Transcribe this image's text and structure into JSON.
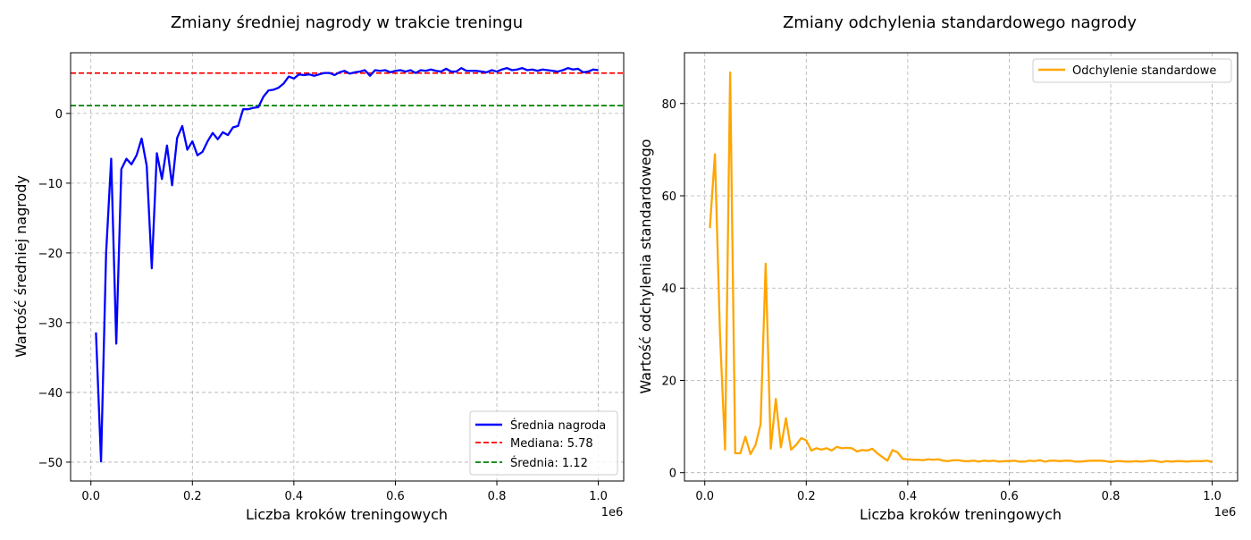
{
  "chart_data": [
    {
      "type": "line",
      "title": "Zmiany średniej nagrody w trakcie treningu",
      "xlabel": "Liczba kroków treningowych",
      "ylabel": "Wartość średniej nagrody",
      "x_offset_label": "1e6",
      "xlim": [
        -0.04,
        1.05
      ],
      "ylim": [
        -52.7,
        8.7
      ],
      "x_ticks": [
        0.0,
        0.2,
        0.4,
        0.6,
        0.8,
        1.0
      ],
      "x_tick_labels": [
        "0.0",
        "0.2",
        "0.4",
        "0.6",
        "0.8",
        "1.0"
      ],
      "y_ticks": [
        -50,
        -40,
        -30,
        -20,
        -10,
        0
      ],
      "y_tick_labels": [
        "−50",
        "−40",
        "−30",
        "−20",
        "−10",
        "0"
      ],
      "grid": true,
      "legend_position": "bottom-right",
      "legend": [
        "Średnia nagroda",
        "Mediana: 5.78",
        "Średnia: 1.12"
      ],
      "series": [
        {
          "name": "Średnia nagroda",
          "color": "#0000ff",
          "style": "solid",
          "x": [
            0.01,
            0.02,
            0.03,
            0.04,
            0.05,
            0.06,
            0.07,
            0.08,
            0.09,
            0.1,
            0.11,
            0.12,
            0.13,
            0.14,
            0.15,
            0.16,
            0.17,
            0.18,
            0.19,
            0.2,
            0.21,
            0.22,
            0.23,
            0.24,
            0.25,
            0.26,
            0.27,
            0.28,
            0.29,
            0.3,
            0.31,
            0.32,
            0.33,
            0.34,
            0.35,
            0.36,
            0.37,
            0.38,
            0.39,
            0.4,
            0.41,
            0.42,
            0.43,
            0.44,
            0.45,
            0.46,
            0.47,
            0.48,
            0.49,
            0.5,
            0.51,
            0.52,
            0.53,
            0.54,
            0.55,
            0.56,
            0.57,
            0.58,
            0.59,
            0.6,
            0.61,
            0.62,
            0.63,
            0.64,
            0.65,
            0.66,
            0.67,
            0.68,
            0.69,
            0.7,
            0.71,
            0.72,
            0.73,
            0.74,
            0.75,
            0.76,
            0.77,
            0.78,
            0.79,
            0.8,
            0.81,
            0.82,
            0.83,
            0.84,
            0.85,
            0.86,
            0.87,
            0.88,
            0.89,
            0.9,
            0.91,
            0.92,
            0.93,
            0.94,
            0.95,
            0.96,
            0.97,
            0.98,
            0.99,
            1.0
          ],
          "y": [
            -31.4,
            -49.9,
            -20.0,
            -6.5,
            -33.0,
            -8.0,
            -6.5,
            -7.3,
            -6.0,
            -3.6,
            -7.5,
            -22.2,
            -5.7,
            -9.4,
            -4.6,
            -10.3,
            -3.5,
            -1.8,
            -5.2,
            -4.0,
            -6.0,
            -5.5,
            -4.0,
            -2.8,
            -3.7,
            -2.7,
            -3.1,
            -2.0,
            -1.8,
            0.6,
            0.6,
            0.8,
            0.9,
            2.4,
            3.3,
            3.4,
            3.7,
            4.3,
            5.3,
            5.0,
            5.6,
            5.5,
            5.6,
            5.4,
            5.6,
            5.8,
            5.8,
            5.5,
            5.9,
            6.1,
            5.7,
            5.9,
            6.0,
            6.2,
            5.4,
            6.2,
            6.1,
            6.2,
            5.9,
            6.1,
            6.2,
            6.0,
            6.2,
            5.8,
            6.2,
            6.1,
            6.3,
            6.1,
            6.0,
            6.4,
            6.0,
            6.0,
            6.5,
            6.1,
            6.1,
            6.1,
            6.0,
            5.9,
            6.2,
            6.0,
            6.3,
            6.5,
            6.2,
            6.3,
            6.5,
            6.2,
            6.3,
            6.1,
            6.3,
            6.2,
            6.1,
            6.0,
            6.2,
            6.5,
            6.3,
            6.4,
            5.9,
            6.0,
            6.3,
            6.2
          ]
        },
        {
          "name": "Mediana: 5.78",
          "color": "#ff0000",
          "style": "dashed",
          "hline": 5.78
        },
        {
          "name": "Średnia: 1.12",
          "color": "#008000",
          "style": "dashed",
          "hline": 1.12
        }
      ]
    },
    {
      "type": "line",
      "title": "Zmiany odchylenia standardowego nagrody",
      "xlabel": "Liczba kroków treningowych",
      "ylabel": "Wartość odchylenia standardowego",
      "x_offset_label": "1e6",
      "xlim": [
        -0.04,
        1.05
      ],
      "ylim": [
        -1.8,
        91.0
      ],
      "x_ticks": [
        0.0,
        0.2,
        0.4,
        0.6,
        0.8,
        1.0
      ],
      "x_tick_labels": [
        "0.0",
        "0.2",
        "0.4",
        "0.6",
        "0.8",
        "1.0"
      ],
      "y_ticks": [
        0,
        20,
        40,
        60,
        80
      ],
      "y_tick_labels": [
        "0",
        "20",
        "40",
        "60",
        "80"
      ],
      "grid": true,
      "legend_position": "top-right",
      "legend": [
        "Odchylenie standardowe"
      ],
      "series": [
        {
          "name": "Odchylenie standardowe",
          "color": "#ffa500",
          "style": "solid",
          "x": [
            0.01,
            0.02,
            0.03,
            0.04,
            0.05,
            0.06,
            0.07,
            0.08,
            0.09,
            0.1,
            0.11,
            0.12,
            0.13,
            0.14,
            0.15,
            0.16,
            0.17,
            0.18,
            0.19,
            0.2,
            0.21,
            0.22,
            0.23,
            0.24,
            0.25,
            0.26,
            0.27,
            0.28,
            0.29,
            0.3,
            0.31,
            0.32,
            0.33,
            0.34,
            0.35,
            0.36,
            0.37,
            0.38,
            0.39,
            0.4,
            0.41,
            0.42,
            0.43,
            0.44,
            0.45,
            0.46,
            0.47,
            0.48,
            0.49,
            0.5,
            0.51,
            0.52,
            0.53,
            0.54,
            0.55,
            0.56,
            0.57,
            0.58,
            0.59,
            0.6,
            0.61,
            0.62,
            0.63,
            0.64,
            0.65,
            0.66,
            0.67,
            0.68,
            0.69,
            0.7,
            0.71,
            0.72,
            0.73,
            0.74,
            0.75,
            0.76,
            0.77,
            0.78,
            0.79,
            0.8,
            0.81,
            0.82,
            0.83,
            0.84,
            0.85,
            0.86,
            0.87,
            0.88,
            0.89,
            0.9,
            0.91,
            0.92,
            0.93,
            0.94,
            0.95,
            0.96,
            0.97,
            0.98,
            0.99,
            1.0
          ],
          "y": [
            53.0,
            69.0,
            30.0,
            5.0,
            86.7,
            4.2,
            4.2,
            7.8,
            4.0,
            6.0,
            10.5,
            45.3,
            5.2,
            16.0,
            5.5,
            11.8,
            5.0,
            6.0,
            7.5,
            7.0,
            4.8,
            5.3,
            5.0,
            5.3,
            4.8,
            5.6,
            5.3,
            5.4,
            5.3,
            4.6,
            4.9,
            4.8,
            5.2,
            4.2,
            3.4,
            2.6,
            4.9,
            4.4,
            3.0,
            2.9,
            2.8,
            2.8,
            2.7,
            2.9,
            2.8,
            2.9,
            2.6,
            2.5,
            2.7,
            2.7,
            2.5,
            2.5,
            2.6,
            2.4,
            2.6,
            2.5,
            2.6,
            2.4,
            2.5,
            2.5,
            2.6,
            2.4,
            2.4,
            2.6,
            2.5,
            2.7,
            2.4,
            2.6,
            2.6,
            2.5,
            2.6,
            2.6,
            2.4,
            2.4,
            2.5,
            2.6,
            2.6,
            2.6,
            2.5,
            2.3,
            2.5,
            2.5,
            2.4,
            2.4,
            2.5,
            2.4,
            2.5,
            2.6,
            2.5,
            2.3,
            2.5,
            2.4,
            2.5,
            2.5,
            2.4,
            2.5,
            2.5,
            2.5,
            2.6,
            2.3
          ]
        }
      ]
    }
  ]
}
